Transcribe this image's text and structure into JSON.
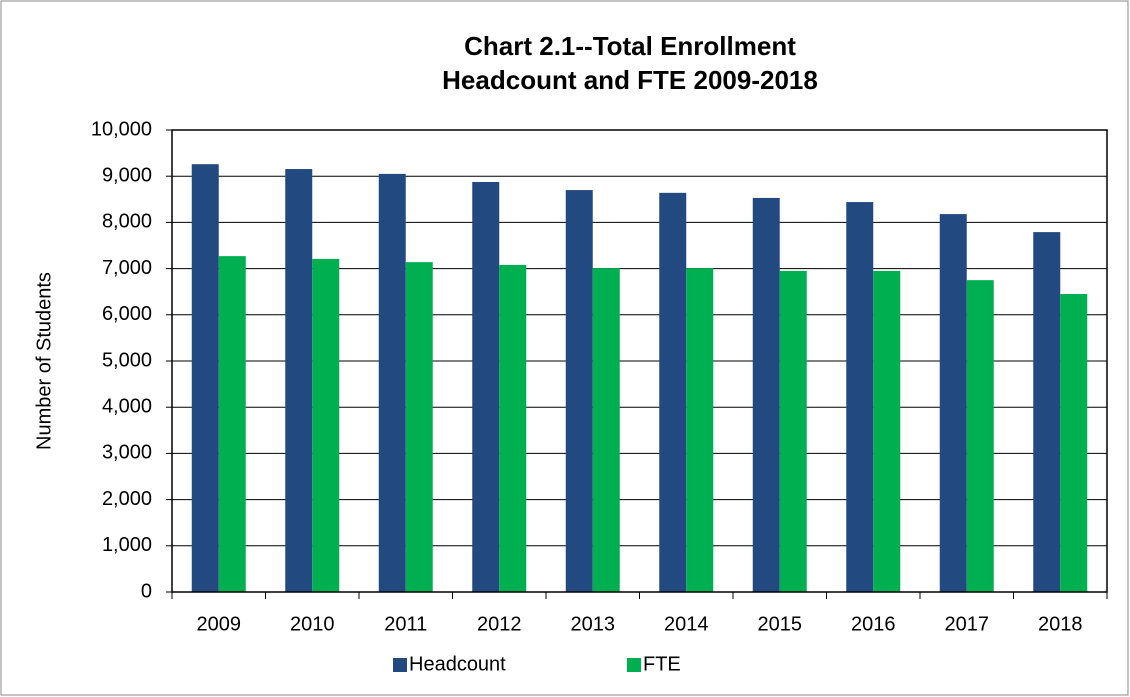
{
  "chart_data": {
    "type": "bar",
    "title": [
      "Chart 2.1--Total Enrollment",
      "Headcount and FTE 2009-2018"
    ],
    "y_label": "Number of Students",
    "categories": [
      "2009",
      "2010",
      "2011",
      "2012",
      "2013",
      "2014",
      "2015",
      "2016",
      "2017",
      "2018"
    ],
    "series": [
      {
        "name": "Headcount",
        "color": "#234a80",
        "values": [
          9260,
          9155,
          9050,
          8875,
          8700,
          8640,
          8530,
          8440,
          8180,
          7790
        ]
      },
      {
        "name": "FTE",
        "color": "#00b050",
        "values": [
          7270,
          7210,
          7140,
          7080,
          7010,
          7010,
          6950,
          6950,
          6750,
          6450
        ]
      }
    ],
    "ylim": [
      0,
      10000
    ],
    "yticks": [
      0,
      {
        "value": 1000,
        "label": "1,000"
      },
      {
        "value": 2000,
        "label": "2,000"
      },
      {
        "value": 3000,
        "label": "3,000"
      },
      {
        "value": 4000,
        "label": "4,000"
      },
      {
        "value": 5000,
        "label": "5,000"
      },
      {
        "value": 6000,
        "label": "6,000"
      },
      {
        "value": 7000,
        "label": "7,000"
      },
      {
        "value": 8000,
        "label": "8,000"
      },
      {
        "value": 9000,
        "label": "9,000"
      },
      {
        "value": 10000,
        "label": "10,000"
      }
    ],
    "grid": true,
    "legend": "bottom"
  }
}
